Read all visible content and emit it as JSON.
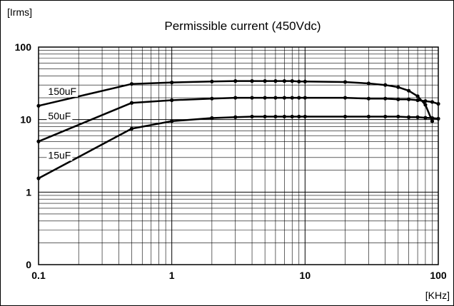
{
  "chart_data": {
    "type": "line",
    "title": "Permissible current (450Vdc)",
    "xlabel": "[KHz]",
    "ylabel": "[Irms]",
    "x_scale": "log",
    "y_scale": "log",
    "xlim": [
      0.1,
      100
    ],
    "ylim": [
      0.1,
      100
    ],
    "grid": true,
    "x_ticks": [
      {
        "value": 0.1,
        "label": "0.1"
      },
      {
        "value": 1,
        "label": "1"
      },
      {
        "value": 10,
        "label": "10"
      },
      {
        "value": 100,
        "label": "100"
      }
    ],
    "y_ticks": [
      {
        "value": 0.1,
        "label": "0"
      },
      {
        "value": 1,
        "label": "1"
      },
      {
        "value": 10,
        "label": "10"
      },
      {
        "value": 100,
        "label": "100"
      }
    ],
    "series": [
      {
        "name": "150uF",
        "points": [
          [
            0.1,
            15.5
          ],
          [
            0.5,
            31
          ],
          [
            1,
            32.5
          ],
          [
            2,
            33.5
          ],
          [
            3,
            34
          ],
          [
            4,
            34
          ],
          [
            5,
            34
          ],
          [
            6,
            34
          ],
          [
            7,
            34
          ],
          [
            8,
            34
          ],
          [
            9,
            33.5
          ],
          [
            10,
            33.5
          ],
          [
            20,
            33
          ],
          [
            30,
            31.5
          ],
          [
            40,
            30
          ],
          [
            50,
            28
          ],
          [
            60,
            25
          ],
          [
            70,
            21
          ],
          [
            80,
            16
          ],
          [
            90,
            9.5
          ]
        ]
      },
      {
        "name": "50uF",
        "points": [
          [
            0.1,
            5
          ],
          [
            0.5,
            17
          ],
          [
            1,
            18.5
          ],
          [
            2,
            19.5
          ],
          [
            3,
            20
          ],
          [
            4,
            20
          ],
          [
            5,
            20
          ],
          [
            6,
            20
          ],
          [
            7,
            20
          ],
          [
            8,
            20
          ],
          [
            9,
            20
          ],
          [
            10,
            20
          ],
          [
            20,
            20
          ],
          [
            30,
            19.5
          ],
          [
            40,
            19.5
          ],
          [
            50,
            19
          ],
          [
            60,
            19
          ],
          [
            70,
            18.5
          ],
          [
            80,
            18
          ],
          [
            90,
            17.5
          ],
          [
            100,
            16.5
          ]
        ]
      },
      {
        "name": "15uF",
        "points": [
          [
            0.1,
            1.55
          ],
          [
            0.5,
            7.5
          ],
          [
            1,
            9.5
          ],
          [
            2,
            10.5
          ],
          [
            3,
            10.8
          ],
          [
            4,
            11
          ],
          [
            5,
            11
          ],
          [
            6,
            11
          ],
          [
            7,
            11
          ],
          [
            8,
            11
          ],
          [
            9,
            11
          ],
          [
            10,
            11
          ],
          [
            20,
            11
          ],
          [
            30,
            11
          ],
          [
            40,
            11
          ],
          [
            50,
            11
          ],
          [
            60,
            10.8
          ],
          [
            70,
            10.8
          ],
          [
            80,
            10.6
          ],
          [
            90,
            10.5
          ],
          [
            100,
            10.3
          ]
        ]
      }
    ],
    "series_label_positions": {
      "150uF": [
        0.118,
        22
      ],
      "50uF": [
        0.118,
        10
      ],
      "15uF": [
        0.118,
        2.9
      ]
    }
  }
}
